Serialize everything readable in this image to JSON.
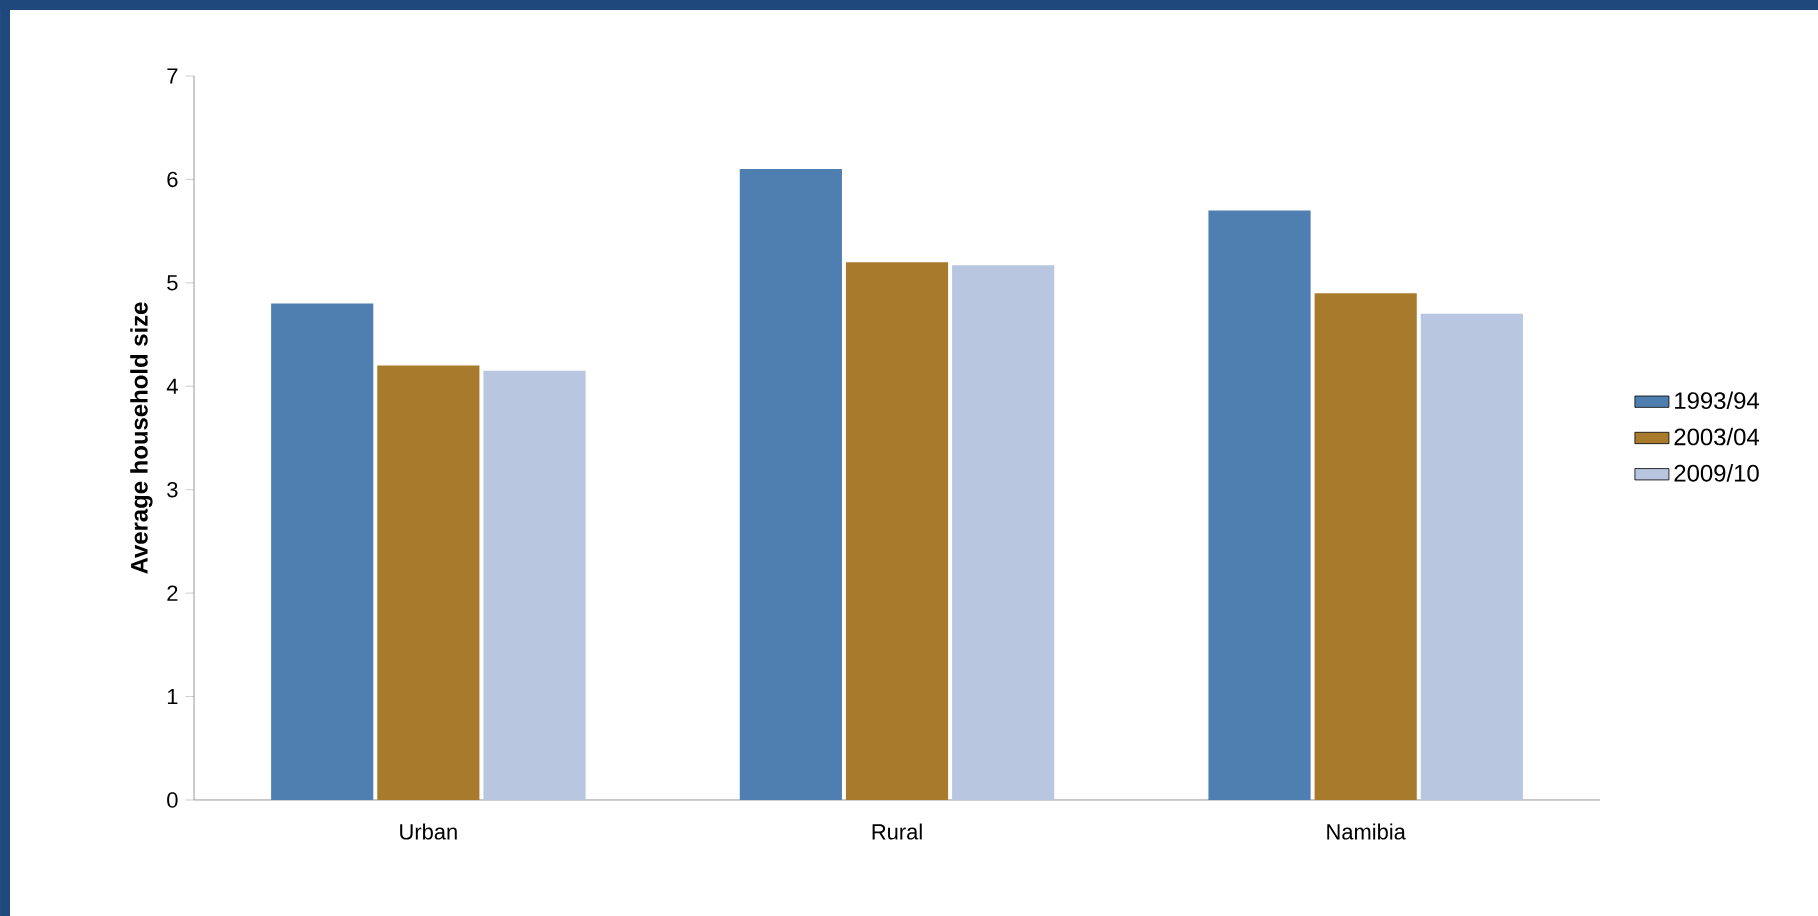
{
  "chart_data": {
    "type": "bar",
    "ylabel": "Average household size",
    "categories": [
      "Urban",
      "Rural",
      "Namibia"
    ],
    "series": [
      {
        "name": "1993/94",
        "color": "#4f7fb0",
        "values": [
          4.8,
          6.1,
          5.7
        ]
      },
      {
        "name": "2003/04",
        "color": "#a87b2c",
        "values": [
          4.2,
          5.2,
          4.9
        ]
      },
      {
        "name": "2009/10",
        "color": "#b8c6e0",
        "values": [
          4.15,
          5.17,
          4.7
        ]
      }
    ],
    "ylim": [
      0,
      7
    ],
    "yticks": [
      0,
      1,
      2,
      3,
      4,
      5,
      6,
      7
    ],
    "legend": "right"
  }
}
